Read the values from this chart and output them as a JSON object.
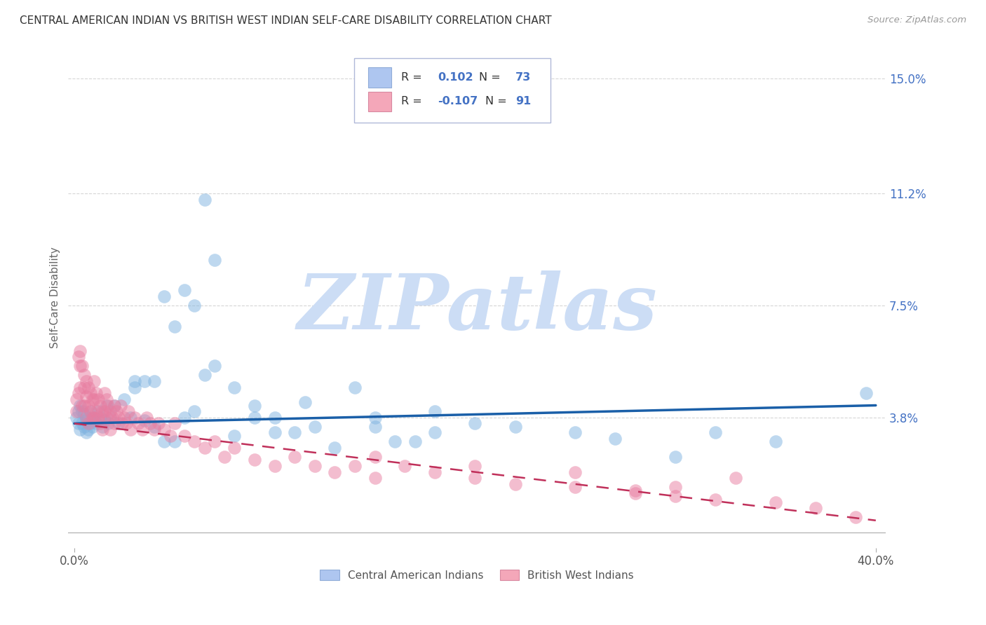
{
  "title": "CENTRAL AMERICAN INDIAN VS BRITISH WEST INDIAN SELF-CARE DISABILITY CORRELATION CHART",
  "source": "Source: ZipAtlas.com",
  "ylabel": "Self-Care Disability",
  "xlim": [
    -0.003,
    0.405
  ],
  "ylim": [
    -0.005,
    0.16
  ],
  "yticks": [
    0.038,
    0.075,
    0.112,
    0.15
  ],
  "ytick_labels": [
    "3.8%",
    "7.5%",
    "11.2%",
    "15.0%"
  ],
  "xticks": [
    0.0,
    0.4
  ],
  "xtick_labels": [
    "0.0%",
    "40.0%"
  ],
  "group1_color": "#7fb3e0",
  "group2_color": "#e87da0",
  "trend1_color": "#1a5fa8",
  "trend2_color": "#c0305a",
  "watermark": "ZIPatlas",
  "watermark_color": "#ccddf5",
  "background_color": "#ffffff",
  "grid_color": "#cccccc",
  "title_color": "#333333",
  "right_ytick_color": "#4472c4",
  "legend_box_color": "#d0d8f0",
  "group1_x": [
    0.001,
    0.002,
    0.002,
    0.003,
    0.003,
    0.004,
    0.004,
    0.005,
    0.005,
    0.006,
    0.006,
    0.007,
    0.007,
    0.008,
    0.008,
    0.009,
    0.01,
    0.01,
    0.011,
    0.012,
    0.013,
    0.014,
    0.015,
    0.016,
    0.017,
    0.018,
    0.02,
    0.022,
    0.025,
    0.028,
    0.03,
    0.035,
    0.04,
    0.045,
    0.05,
    0.055,
    0.06,
    0.065,
    0.07,
    0.08,
    0.09,
    0.1,
    0.11,
    0.12,
    0.14,
    0.15,
    0.17,
    0.18,
    0.2,
    0.22,
    0.25,
    0.27,
    0.3,
    0.32,
    0.35,
    0.03,
    0.035,
    0.04,
    0.045,
    0.05,
    0.055,
    0.06,
    0.065,
    0.07,
    0.08,
    0.09,
    0.1,
    0.115,
    0.13,
    0.15,
    0.16,
    0.18,
    0.395
  ],
  "group1_y": [
    0.038,
    0.036,
    0.04,
    0.034,
    0.042,
    0.036,
    0.04,
    0.035,
    0.039,
    0.033,
    0.037,
    0.038,
    0.034,
    0.036,
    0.04,
    0.035,
    0.038,
    0.037,
    0.036,
    0.04,
    0.038,
    0.035,
    0.037,
    0.042,
    0.036,
    0.038,
    0.042,
    0.036,
    0.044,
    0.038,
    0.048,
    0.05,
    0.05,
    0.078,
    0.068,
    0.08,
    0.075,
    0.052,
    0.055,
    0.048,
    0.042,
    0.038,
    0.033,
    0.035,
    0.048,
    0.035,
    0.03,
    0.033,
    0.036,
    0.035,
    0.033,
    0.031,
    0.025,
    0.033,
    0.03,
    0.05,
    0.037,
    0.035,
    0.03,
    0.03,
    0.038,
    0.04,
    0.11,
    0.09,
    0.032,
    0.038,
    0.033,
    0.043,
    0.028,
    0.038,
    0.03,
    0.04,
    0.046
  ],
  "group2_x": [
    0.001,
    0.001,
    0.002,
    0.002,
    0.003,
    0.003,
    0.003,
    0.004,
    0.004,
    0.005,
    0.005,
    0.005,
    0.006,
    0.006,
    0.006,
    0.007,
    0.007,
    0.007,
    0.008,
    0.008,
    0.009,
    0.009,
    0.01,
    0.01,
    0.01,
    0.011,
    0.011,
    0.012,
    0.012,
    0.013,
    0.013,
    0.014,
    0.014,
    0.015,
    0.015,
    0.016,
    0.016,
    0.017,
    0.018,
    0.018,
    0.019,
    0.02,
    0.02,
    0.021,
    0.022,
    0.023,
    0.024,
    0.025,
    0.026,
    0.027,
    0.028,
    0.03,
    0.032,
    0.034,
    0.036,
    0.038,
    0.04,
    0.042,
    0.045,
    0.048,
    0.05,
    0.055,
    0.06,
    0.065,
    0.07,
    0.075,
    0.08,
    0.09,
    0.1,
    0.11,
    0.12,
    0.13,
    0.14,
    0.15,
    0.165,
    0.18,
    0.2,
    0.22,
    0.25,
    0.28,
    0.3,
    0.32,
    0.35,
    0.37,
    0.3,
    0.33,
    0.25,
    0.2,
    0.28,
    0.15,
    0.39
  ],
  "group2_y": [
    0.04,
    0.044,
    0.058,
    0.046,
    0.06,
    0.055,
    0.048,
    0.055,
    0.042,
    0.052,
    0.048,
    0.042,
    0.05,
    0.045,
    0.038,
    0.048,
    0.042,
    0.036,
    0.046,
    0.04,
    0.044,
    0.038,
    0.05,
    0.044,
    0.038,
    0.046,
    0.04,
    0.044,
    0.038,
    0.042,
    0.036,
    0.04,
    0.034,
    0.046,
    0.04,
    0.044,
    0.038,
    0.042,
    0.04,
    0.034,
    0.038,
    0.042,
    0.036,
    0.04,
    0.038,
    0.042,
    0.036,
    0.038,
    0.036,
    0.04,
    0.034,
    0.038,
    0.036,
    0.034,
    0.038,
    0.036,
    0.034,
    0.036,
    0.034,
    0.032,
    0.036,
    0.032,
    0.03,
    0.028,
    0.03,
    0.025,
    0.028,
    0.024,
    0.022,
    0.025,
    0.022,
    0.02,
    0.022,
    0.018,
    0.022,
    0.02,
    0.018,
    0.016,
    0.015,
    0.013,
    0.012,
    0.011,
    0.01,
    0.008,
    0.015,
    0.018,
    0.02,
    0.022,
    0.014,
    0.025,
    0.005
  ],
  "trend1_x": [
    0.0,
    0.4
  ],
  "trend1_y": [
    0.036,
    0.042
  ],
  "trend2_x": [
    0.0,
    0.4
  ],
  "trend2_y": [
    0.036,
    0.004
  ]
}
